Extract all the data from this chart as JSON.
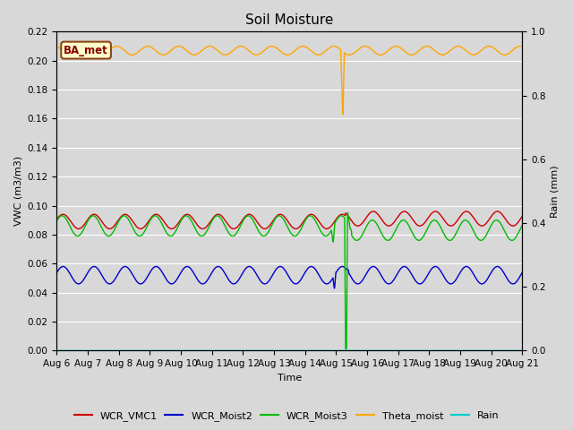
{
  "title": "Soil Moisture",
  "ylabel_left": "VWC (m3/m3)",
  "ylabel_right": "Rain (mm)",
  "xlabel": "Time",
  "ylim_left": [
    0,
    0.22
  ],
  "ylim_right": [
    0.0,
    1.0
  ],
  "yticks_left": [
    0.0,
    0.02,
    0.04,
    0.06,
    0.08,
    0.1,
    0.12,
    0.14,
    0.16,
    0.18,
    0.2,
    0.22
  ],
  "yticks_right": [
    0.0,
    0.2,
    0.4,
    0.6,
    0.8,
    1.0
  ],
  "xtick_labels": [
    "Aug 6",
    "Aug 7",
    "Aug 8",
    "Aug 9",
    "Aug 10",
    "Aug 11",
    "Aug 12",
    "Aug 13",
    "Aug 14",
    "Aug 15",
    "Aug 16",
    "Aug 17",
    "Aug 18",
    "Aug 19",
    "Aug 20",
    "Aug 21"
  ],
  "legend_entries": [
    "WCR_VMC1",
    "WCR_Moist2",
    "WCR_Moist3",
    "Theta_moist",
    "Rain"
  ],
  "legend_colors": [
    "#cc0000",
    "#0000cc",
    "#00bb00",
    "#ffa500",
    "#00cccc"
  ],
  "station_label": "BA_met",
  "background_color": "#d8d8d8",
  "grid_color": "#ffffff",
  "title_fontsize": 11,
  "axis_fontsize": 8,
  "tick_fontsize": 7.5
}
